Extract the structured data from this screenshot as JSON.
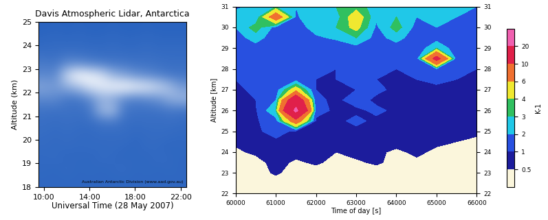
{
  "chart_data": [
    {
      "type": "heatmap",
      "title": "Davis Atmospheric Lidar, Antarctica",
      "x_label": "Universal Time (28 May 2007)",
      "y_label": "Altitude (km)",
      "annotation": "Australian Antarctic Division (www.aad.gov.au)",
      "xlim": [
        9.5,
        22.5
      ],
      "xticks": [
        {
          "value": 10,
          "label": "10:00"
        },
        {
          "value": 14,
          "label": "14:00"
        },
        {
          "value": 18,
          "label": "18:00"
        },
        {
          "value": 22,
          "label": "22:00"
        }
      ],
      "ylim": [
        18,
        25
      ],
      "yticks": [
        18,
        19,
        20,
        21,
        22,
        23,
        24,
        25
      ],
      "colors": [
        "#2a64c0",
        "#ffffff"
      ],
      "cells": [
        [
          0.12,
          0.12,
          0.12,
          0.12,
          0.12,
          0.12,
          0.12,
          0.12,
          0.12,
          0.12,
          0.12,
          0.12,
          0.12
        ],
        [
          0.13,
          0.12,
          0.14,
          0.12,
          0.13,
          0.12,
          0.13,
          0.14,
          0.12,
          0.13,
          0.12,
          0.13,
          0.12
        ],
        [
          0.13,
          0.14,
          0.12,
          0.13,
          0.12,
          0.14,
          0.13,
          0.12,
          0.13,
          0.12,
          0.14,
          0.13,
          0.12
        ],
        [
          0.14,
          0.13,
          0.14,
          0.13,
          0.14,
          0.13,
          0.14,
          0.13,
          0.12,
          0.14,
          0.13,
          0.12,
          0.13
        ],
        [
          0.15,
          0.14,
          0.15,
          0.14,
          0.13,
          0.15,
          0.14,
          0.15,
          0.13,
          0.14,
          0.15,
          0.14,
          0.13
        ],
        [
          0.16,
          0.15,
          0.16,
          0.15,
          0.16,
          0.18,
          0.2,
          0.16,
          0.15,
          0.16,
          0.15,
          0.16,
          0.15
        ],
        [
          0.18,
          0.17,
          0.18,
          0.17,
          0.2,
          0.55,
          0.6,
          0.2,
          0.18,
          0.17,
          0.18,
          0.2,
          0.18
        ],
        [
          0.3,
          0.3,
          0.2,
          0.2,
          0.3,
          0.5,
          0.45,
          0.3,
          0.25,
          0.3,
          0.35,
          0.5,
          0.55
        ],
        [
          0.45,
          0.4,
          0.5,
          0.6,
          0.8,
          0.85,
          0.9,
          0.95,
          0.9,
          0.85,
          0.75,
          0.6,
          0.4
        ],
        [
          0.3,
          0.3,
          0.75,
          0.95,
          0.9,
          0.8,
          0.55,
          0.45,
          0.35,
          0.3,
          0.25,
          0.2,
          0.2
        ],
        [
          0.22,
          0.2,
          0.3,
          0.3,
          0.25,
          0.22,
          0.2,
          0.2,
          0.18,
          0.18,
          0.17,
          0.16,
          0.16
        ],
        [
          0.15,
          0.15,
          0.16,
          0.15,
          0.15,
          0.14,
          0.15,
          0.14,
          0.14,
          0.15,
          0.14,
          0.14,
          0.14
        ],
        [
          0.12,
          0.13,
          0.12,
          0.13,
          0.12,
          0.12,
          0.13,
          0.12,
          0.12,
          0.13,
          0.12,
          0.12,
          0.12
        ],
        [
          0.1,
          0.11,
          0.1,
          0.11,
          0.1,
          0.1,
          0.11,
          0.1,
          0.1,
          0.11,
          0.1,
          0.1,
          0.1
        ]
      ]
    },
    {
      "type": "contour",
      "x_label": "Time of day [s]",
      "y_label": "Altitude [km]",
      "colorbar_label": "K-1",
      "xlim": [
        60000,
        66000
      ],
      "xticks": [
        60000,
        61000,
        62000,
        63000,
        64000,
        65000,
        66000
      ],
      "ylim": [
        22,
        31
      ],
      "yticks": [
        22,
        23,
        24,
        25,
        26,
        27,
        28,
        29,
        30,
        31
      ],
      "x": [
        60000,
        60500,
        61000,
        61500,
        62000,
        62500,
        63000,
        63500,
        64000,
        64500,
        65000,
        65500,
        66000
      ],
      "y": [
        22,
        22.5,
        23,
        23.5,
        24,
        24.5,
        25,
        25.5,
        26,
        26.5,
        27,
        27.5,
        28,
        28.5,
        29,
        29.5,
        30,
        30.5,
        31
      ],
      "color_levels": [
        0,
        0.5,
        1,
        2,
        3,
        4,
        6,
        10,
        20,
        30
      ],
      "colorbar_ticks": [
        0.5,
        1,
        2,
        3,
        4,
        6,
        10,
        20
      ],
      "colors": [
        "#fbf6dc",
        "#1c1c9c",
        "#2850e0",
        "#20c8e8",
        "#30c060",
        "#f0e830",
        "#f07030",
        "#e0204a",
        "#f060b0"
      ],
      "cells": [
        [
          0.2,
          0.2,
          0.2,
          0.2,
          0.2,
          0.2,
          0.2,
          0.2,
          0.2,
          0.2,
          0.2,
          0.2,
          0.2
        ],
        [
          0.2,
          0.2,
          0.2,
          0.2,
          0.2,
          0.2,
          0.2,
          0.2,
          0.2,
          0.2,
          0.2,
          0.2,
          0.2
        ],
        [
          0.2,
          0.2,
          0.6,
          0.2,
          0.2,
          0.2,
          0.2,
          0.2,
          0.2,
          0.2,
          0.2,
          0.2,
          0.2
        ],
        [
          0.3,
          0.3,
          0.7,
          0.4,
          0.6,
          0.3,
          0.4,
          0.6,
          0.3,
          0.4,
          0.3,
          0.3,
          0.3
        ],
        [
          0.4,
          0.6,
          0.8,
          0.7,
          0.6,
          0.5,
          0.7,
          0.6,
          0.4,
          0.6,
          0.4,
          0.3,
          0.3
        ],
        [
          0.6,
          0.8,
          0.9,
          0.8,
          0.8,
          0.7,
          0.8,
          0.8,
          0.7,
          0.7,
          0.6,
          0.5,
          0.4
        ],
        [
          0.8,
          0.9,
          1.2,
          0.9,
          0.9,
          0.8,
          0.9,
          0.9,
          0.8,
          0.8,
          0.8,
          0.7,
          0.6
        ],
        [
          0.9,
          0.9,
          1.5,
          8,
          0.9,
          0.9,
          1.1,
          0.9,
          0.9,
          0.9,
          0.8,
          0.8,
          0.8
        ],
        [
          0.9,
          0.9,
          3,
          22,
          1.2,
          0.9,
          0.9,
          1.1,
          0.9,
          0.9,
          0.8,
          0.9,
          0.8
        ],
        [
          0.9,
          1.0,
          2,
          15,
          1.1,
          0.9,
          1.2,
          0.9,
          0.8,
          0.9,
          0.9,
          0.9,
          0.8
        ],
        [
          0.9,
          1.1,
          1.5,
          5,
          1.0,
          0.9,
          1.0,
          1.1,
          0.9,
          0.9,
          0.9,
          1.0,
          0.9
        ],
        [
          1.0,
          1.2,
          1.1,
          1.5,
          1.0,
          1.0,
          1.2,
          1.0,
          0.9,
          1.0,
          1.1,
          1.0,
          0.9
        ],
        [
          1.0,
          1.1,
          1.2,
          1.1,
          1.3,
          1.0,
          1.1,
          1.2,
          1.0,
          1.1,
          1.8,
          1.1,
          1.0
        ],
        [
          1.1,
          1.2,
          1.1,
          1.0,
          1.2,
          1.1,
          1.3,
          1.1,
          1.2,
          1.2,
          12,
          1.2,
          1.1
        ],
        [
          1.3,
          1.5,
          1.2,
          1.1,
          1.4,
          1.2,
          1.6,
          1.3,
          1.5,
          1.2,
          3,
          1.3,
          1.2
        ],
        [
          1.5,
          2.5,
          1.3,
          1.2,
          1.8,
          2.2,
          3,
          1.6,
          2.4,
          1.4,
          1.5,
          1.6,
          1.3
        ],
        [
          2,
          3.5,
          1.6,
          1.4,
          2.5,
          3,
          4.5,
          1.8,
          3.5,
          1.6,
          2,
          1.8,
          1.5
        ],
        [
          2.5,
          2,
          8,
          1.8,
          3,
          2.5,
          5,
          2.2,
          3,
          2,
          2.5,
          2,
          1.8
        ],
        [
          1.8,
          2.2,
          3,
          2,
          2.5,
          3,
          3.5,
          2.5,
          2.8,
          2.2,
          2.4,
          2.1,
          2
        ]
      ]
    }
  ]
}
